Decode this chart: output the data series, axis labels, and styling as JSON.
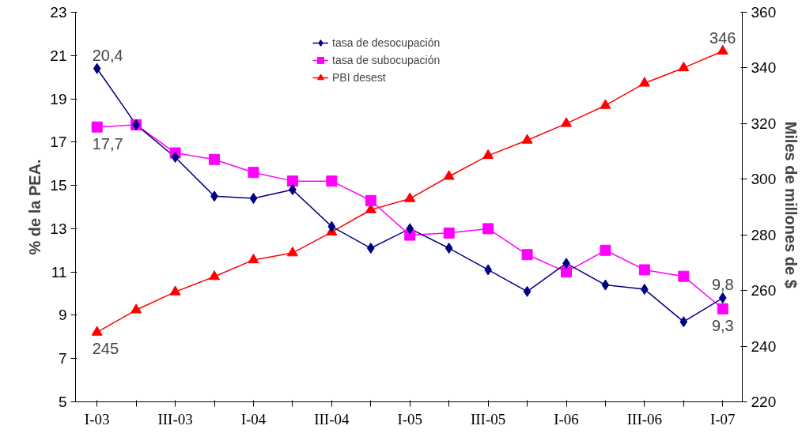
{
  "chart_data": {
    "type": "line",
    "ylabel": "% de la PEA.",
    "y2label": "Miles  de millones de $",
    "categories": [
      "I-03",
      null,
      "III-03",
      null,
      "I-04",
      null,
      "III-04",
      null,
      "I-05",
      null,
      "III-05",
      null,
      "I-06",
      null,
      "III-06",
      null,
      "I-07"
    ],
    "ylim": [
      5,
      23
    ],
    "yticks": [
      5,
      7,
      9,
      11,
      13,
      15,
      17,
      19,
      21,
      23
    ],
    "y2lim": [
      220,
      360
    ],
    "y2ticks": [
      220,
      240,
      260,
      280,
      300,
      320,
      340,
      360
    ],
    "grid": false,
    "legend": "top",
    "series": [
      {
        "name": "tasa de desocupación",
        "color": "#000080",
        "marker": "diamond",
        "values": [
          20.4,
          17.8,
          16.3,
          14.5,
          14.4,
          14.8,
          13.1,
          12.1,
          13.0,
          12.1,
          11.1,
          10.1,
          11.4,
          10.4,
          10.2,
          8.7,
          9.8
        ],
        "value_labels": [
          "20,4",
          null,
          null,
          null,
          null,
          null,
          null,
          null,
          null,
          null,
          null,
          null,
          null,
          null,
          null,
          null,
          "9,8"
        ]
      },
      {
        "name": "tasa de subocupación",
        "color": "#ff00ff",
        "marker": "square",
        "values": [
          17.7,
          17.8,
          16.5,
          16.2,
          15.6,
          15.2,
          15.2,
          14.3,
          12.7,
          12.8,
          13.0,
          11.8,
          11.0,
          12.0,
          11.1,
          10.8,
          9.3
        ],
        "value_labels": [
          "17,7",
          null,
          null,
          null,
          null,
          null,
          null,
          null,
          null,
          null,
          null,
          null,
          null,
          null,
          null,
          null,
          "9,3"
        ]
      },
      {
        "name": "PBI desest",
        "color": "#ff0000",
        "marker": "triangle",
        "axis": "y2",
        "values": [
          245,
          253,
          259.5,
          265,
          271,
          273.5,
          281,
          289,
          293,
          301,
          308.5,
          314,
          320,
          326.5,
          334.5,
          340,
          346
        ],
        "value_labels": [
          "245",
          null,
          null,
          null,
          null,
          null,
          null,
          null,
          null,
          null,
          null,
          null,
          null,
          null,
          null,
          null,
          "346"
        ]
      }
    ]
  }
}
